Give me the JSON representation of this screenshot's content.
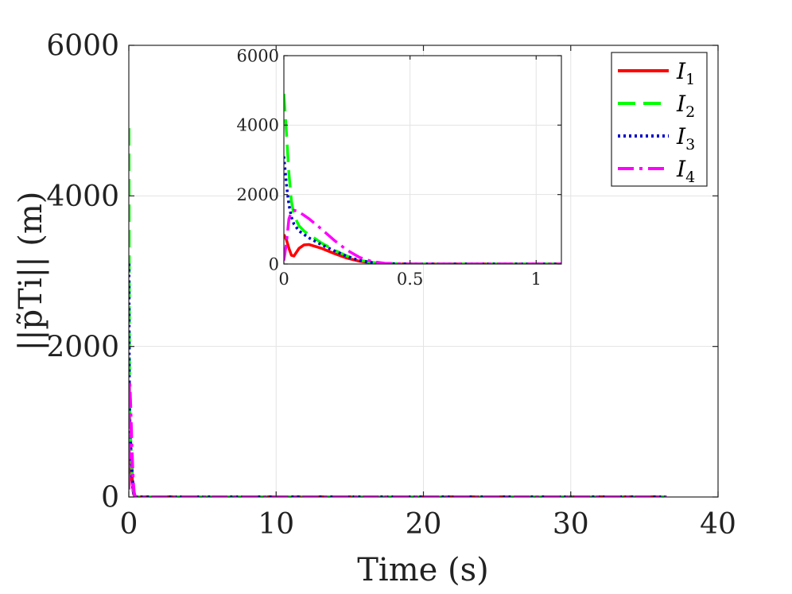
{
  "chart_data": {
    "type": "line",
    "xlabel": "Time (s)",
    "ylabel": "||p̃Ti|| (m)",
    "xlim": [
      0,
      40
    ],
    "ylim": [
      0,
      6000
    ],
    "xticks": [
      0,
      10,
      20,
      30,
      40
    ],
    "yticks": [
      0,
      2000,
      4000,
      6000
    ],
    "grid": true,
    "legend": {
      "placement": "top-right",
      "entries": [
        {
          "base": "I",
          "sub": "1"
        },
        {
          "base": "I",
          "sub": "2"
        },
        {
          "base": "I",
          "sub": "3"
        },
        {
          "base": "I",
          "sub": "4"
        }
      ]
    },
    "series": [
      {
        "name": "I1",
        "color": "#ff0000",
        "style": "solid",
        "x": [
          0,
          0.01,
          0.02,
          0.03,
          0.04,
          0.06,
          0.08,
          0.1,
          0.15,
          0.2,
          0.25,
          0.3,
          0.35,
          0.4,
          0.5,
          0.6,
          0.8,
          1.0,
          1.1,
          5,
          10,
          20,
          30,
          36.5
        ],
        "y": [
          850,
          700,
          450,
          250,
          230,
          450,
          550,
          560,
          450,
          300,
          170,
          80,
          30,
          10,
          0,
          0,
          0,
          0,
          0,
          0,
          0,
          0,
          0,
          0
        ]
      },
      {
        "name": "I2",
        "color": "#00ff00",
        "style": "dashed",
        "x": [
          0,
          0.01,
          0.02,
          0.03,
          0.04,
          0.06,
          0.08,
          0.1,
          0.15,
          0.2,
          0.25,
          0.3,
          0.35,
          0.4,
          0.5,
          0.6,
          0.8,
          1.0,
          1.1,
          5,
          10,
          20,
          30,
          36.5
        ],
        "y": [
          4900,
          3800,
          2600,
          1800,
          1400,
          1100,
          950,
          850,
          600,
          400,
          230,
          110,
          45,
          15,
          0,
          0,
          0,
          0,
          0,
          0,
          0,
          0,
          0,
          0
        ]
      },
      {
        "name": "I3",
        "color": "#0000cc",
        "style": "dotted",
        "x": [
          0,
          0.01,
          0.02,
          0.03,
          0.04,
          0.06,
          0.08,
          0.1,
          0.15,
          0.2,
          0.25,
          0.3,
          0.35,
          0.4,
          0.5,
          0.6,
          0.8,
          1.0,
          1.1,
          5,
          10,
          20,
          30,
          36.5
        ],
        "y": [
          3100,
          2300,
          1700,
          1350,
          1150,
          950,
          850,
          750,
          550,
          380,
          220,
          100,
          40,
          12,
          0,
          0,
          0,
          0,
          0,
          0,
          0,
          0,
          0,
          0
        ]
      },
      {
        "name": "I4",
        "color": "#ff00ff",
        "style": "dashdot",
        "x": [
          0,
          0.01,
          0.02,
          0.03,
          0.04,
          0.06,
          0.08,
          0.1,
          0.15,
          0.2,
          0.25,
          0.3,
          0.35,
          0.4,
          0.5,
          0.6,
          0.8,
          1.0,
          1.1,
          5,
          10,
          20,
          30,
          36.5
        ],
        "y": [
          100,
          600,
          1300,
          1500,
          1550,
          1500,
          1400,
          1300,
          1000,
          680,
          400,
          190,
          70,
          20,
          0,
          0,
          0,
          0,
          0,
          0,
          0,
          0,
          0,
          0
        ]
      }
    ],
    "inset": {
      "xlim": [
        0,
        1.1
      ],
      "ylim": [
        0,
        6000
      ],
      "xticks": [
        0,
        0.5,
        1
      ],
      "yticks": [
        0,
        2000,
        4000,
        6000
      ],
      "grid": true
    }
  }
}
